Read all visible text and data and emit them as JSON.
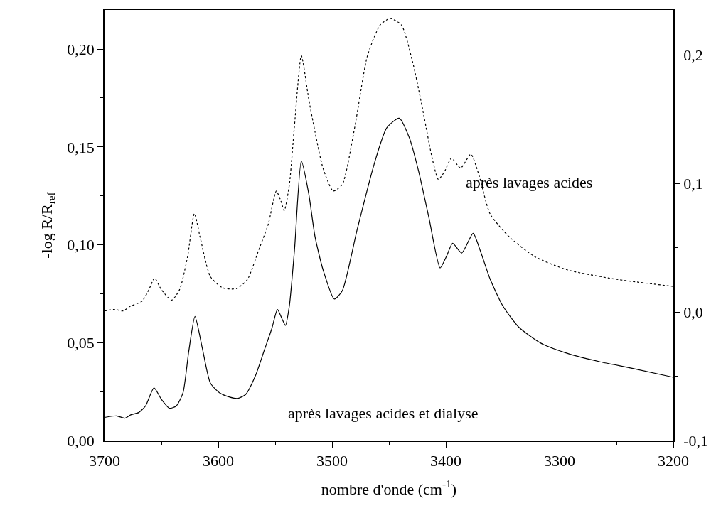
{
  "chart_data": {
    "type": "line",
    "xlabel": "nombre d'onde (cm$^{-1}$)",
    "ylabel": "-log R/R$_{ref}$",
    "xlim": [
      3700,
      3200
    ],
    "xticks": [
      3700,
      3600,
      3500,
      3400,
      3300,
      3200
    ],
    "ylim": [
      0,
      0.22
    ],
    "yticks": [
      {
        "value": 0,
        "label": "0,00"
      },
      {
        "value": 0.05,
        "label": "0,05"
      },
      {
        "value": 0.1,
        "label": "0,10"
      },
      {
        "value": 0.15,
        "label": "0,15"
      },
      {
        "value": 0.2,
        "label": "0,20"
      }
    ],
    "y2lim": [
      -0.1,
      0.235
    ],
    "y2ticks": [
      {
        "value": -0.1,
        "label": "-0,1"
      },
      {
        "value": 0,
        "label": "0,0"
      },
      {
        "value": 0.1,
        "label": "0,1"
      },
      {
        "value": 0.2,
        "label": "0,2"
      }
    ],
    "legend": false,
    "marker": "none",
    "series": [
      {
        "name": "après lavages acides et dialyse",
        "color": "#000000",
        "line_style": "solid",
        "axis": "y",
        "x": [
          3700,
          3689.5,
          3682,
          3677,
          3670,
          3664,
          3656.5,
          3650,
          3643,
          3637,
          3631,
          3626,
          3620.5,
          3614,
          3607,
          3599,
          3590,
          3583,
          3576,
          3567,
          3560,
          3553,
          3548,
          3544,
          3541,
          3537.5,
          3533,
          3527,
          3520.5,
          3515,
          3508,
          3498,
          3491,
          3478,
          3463,
          3452,
          3441,
          3432,
          3424,
          3415,
          3405,
          3399.4,
          3394,
          3386,
          3376,
          3370,
          3361,
          3350,
          3336,
          3316,
          3293,
          3265,
          3237,
          3200
        ],
        "values": [
          0.0118,
          0.0126,
          0.0114,
          0.0131,
          0.0143,
          0.0176,
          0.0269,
          0.021,
          0.0165,
          0.0176,
          0.0244,
          0.0454,
          0.0634,
          0.0471,
          0.0294,
          0.0244,
          0.0222,
          0.0215,
          0.0235,
          0.0336,
          0.0454,
          0.0571,
          0.0669,
          0.0622,
          0.0588,
          0.0689,
          0.0975,
          0.1429,
          0.1261,
          0.1042,
          0.0874,
          0.0723,
          0.0765,
          0.1076,
          0.1412,
          0.1597,
          0.1647,
          0.1546,
          0.1378,
          0.1143,
          0.0882,
          0.0941,
          0.1008,
          0.0958,
          0.1059,
          0.0975,
          0.0824,
          0.0689,
          0.058,
          0.0496,
          0.0445,
          0.0403,
          0.037,
          0.0323
        ]
      },
      {
        "name": "après lavages acides",
        "color": "#000000",
        "line_style": "dotted",
        "axis": "y2",
        "x": [
          3700,
          3691,
          3684,
          3677,
          3667,
          3661,
          3656,
          3650,
          3641,
          3634,
          3627,
          3621,
          3616,
          3607,
          3596,
          3584,
          3574.5,
          3564.5,
          3556,
          3549,
          3545,
          3542,
          3537.5,
          3533,
          3527,
          3520.5,
          3515,
          3508,
          3499,
          3491,
          3480,
          3469,
          3457.7,
          3449,
          3439,
          3429,
          3421,
          3412,
          3406.5,
          3401,
          3395,
          3387,
          3378,
          3371,
          3361,
          3344,
          3321.7,
          3293,
          3251,
          3200
        ],
        "values": [
          0.0008,
          0.002,
          0.0008,
          0.0046,
          0.0084,
          0.0174,
          0.0263,
          0.0174,
          0.0092,
          0.0174,
          0.043,
          0.0767,
          0.0583,
          0.0276,
          0.0187,
          0.0182,
          0.0251,
          0.0481,
          0.0685,
          0.0941,
          0.0864,
          0.0788,
          0.0992,
          0.1453,
          0.1995,
          0.1657,
          0.1402,
          0.112,
          0.0941,
          0.0992,
          0.144,
          0.199,
          0.2233,
          0.2284,
          0.2233,
          0.1939,
          0.1606,
          0.1197,
          0.1031,
          0.1095,
          0.1197,
          0.112,
          0.1228,
          0.1069,
          0.0762,
          0.0583,
          0.043,
          0.0327,
          0.0256,
          0.0199
        ]
      }
    ]
  }
}
